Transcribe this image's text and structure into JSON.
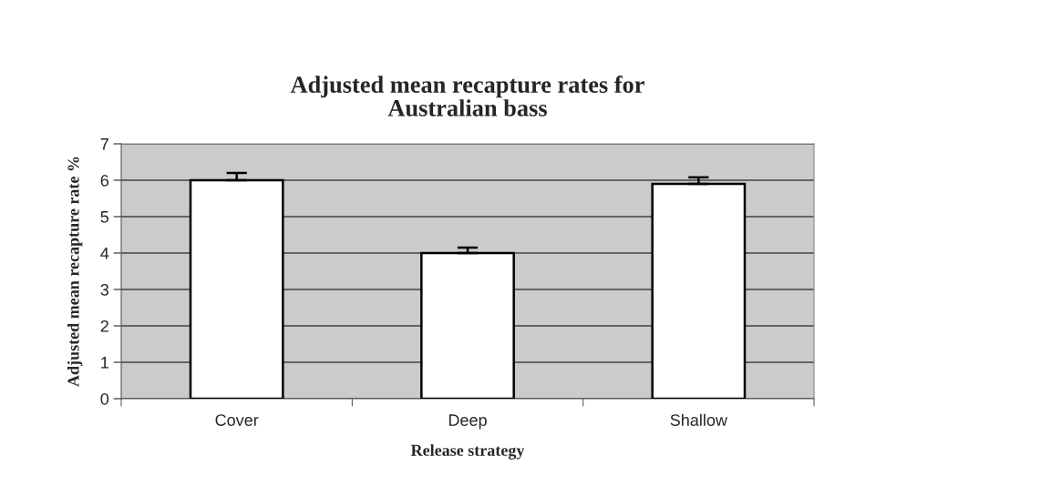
{
  "chart_data": {
    "type": "bar",
    "title": "Adjusted mean recapture rates for\nAustralian bass",
    "xlabel": "Release strategy",
    "ylabel": "Adjusted mean recapture rate %",
    "categories": [
      "Cover",
      "Deep",
      "Shallow"
    ],
    "values": [
      6.0,
      4.0,
      5.9
    ],
    "errors": [
      [
        6.0,
        6.2
      ],
      [
        4.0,
        4.15
      ],
      [
        5.9,
        6.08
      ]
    ],
    "color": "#ffffff",
    "ylim": [
      0,
      7
    ],
    "yticks": [
      0,
      1,
      2,
      3,
      4,
      5,
      6,
      7
    ],
    "grid": "y"
  }
}
